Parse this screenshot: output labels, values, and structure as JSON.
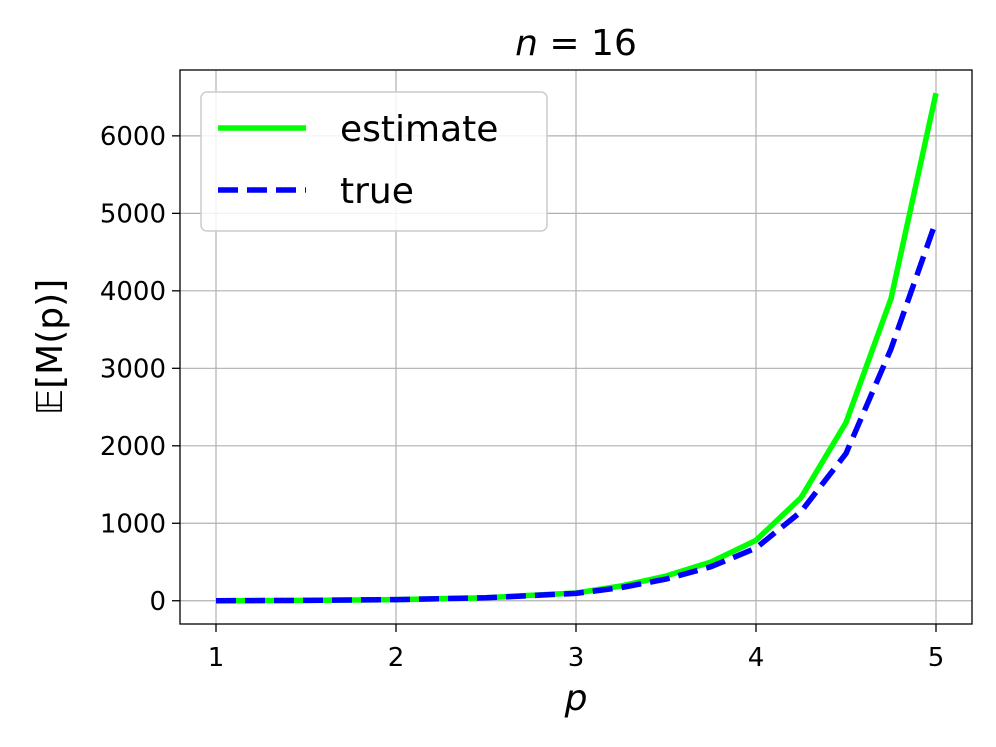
{
  "chart_data": {
    "type": "line",
    "title": "n = 16",
    "xlabel": "p",
    "ylabel": "𝔼[M(p)]",
    "xlim": [
      0.8,
      5.2
    ],
    "ylim": [
      -300,
      6850
    ],
    "xticks": [
      1,
      2,
      3,
      4,
      5
    ],
    "yticks": [
      0,
      1000,
      2000,
      3000,
      4000,
      5000,
      6000
    ],
    "grid": true,
    "legend_position": "top-left",
    "series": [
      {
        "name": "estimate",
        "color": "#00ff00",
        "style": "solid",
        "x": [
          1.0,
          1.5,
          2.0,
          2.5,
          3.0,
          3.25,
          3.5,
          3.75,
          4.0,
          4.25,
          4.5,
          4.75,
          5.0
        ],
        "y": [
          1,
          4,
          15,
          40,
          100,
          190,
          320,
          500,
          780,
          1330,
          2300,
          3900,
          6550
        ]
      },
      {
        "name": "true",
        "color": "#0000ff",
        "style": "dashed",
        "x": [
          1.0,
          1.5,
          2.0,
          2.5,
          3.0,
          3.25,
          3.5,
          3.75,
          4.0,
          4.25,
          4.5,
          4.75,
          5.0
        ],
        "y": [
          1,
          4,
          15,
          38,
          95,
          170,
          280,
          440,
          680,
          1150,
          1900,
          3250,
          4900
        ]
      }
    ]
  }
}
